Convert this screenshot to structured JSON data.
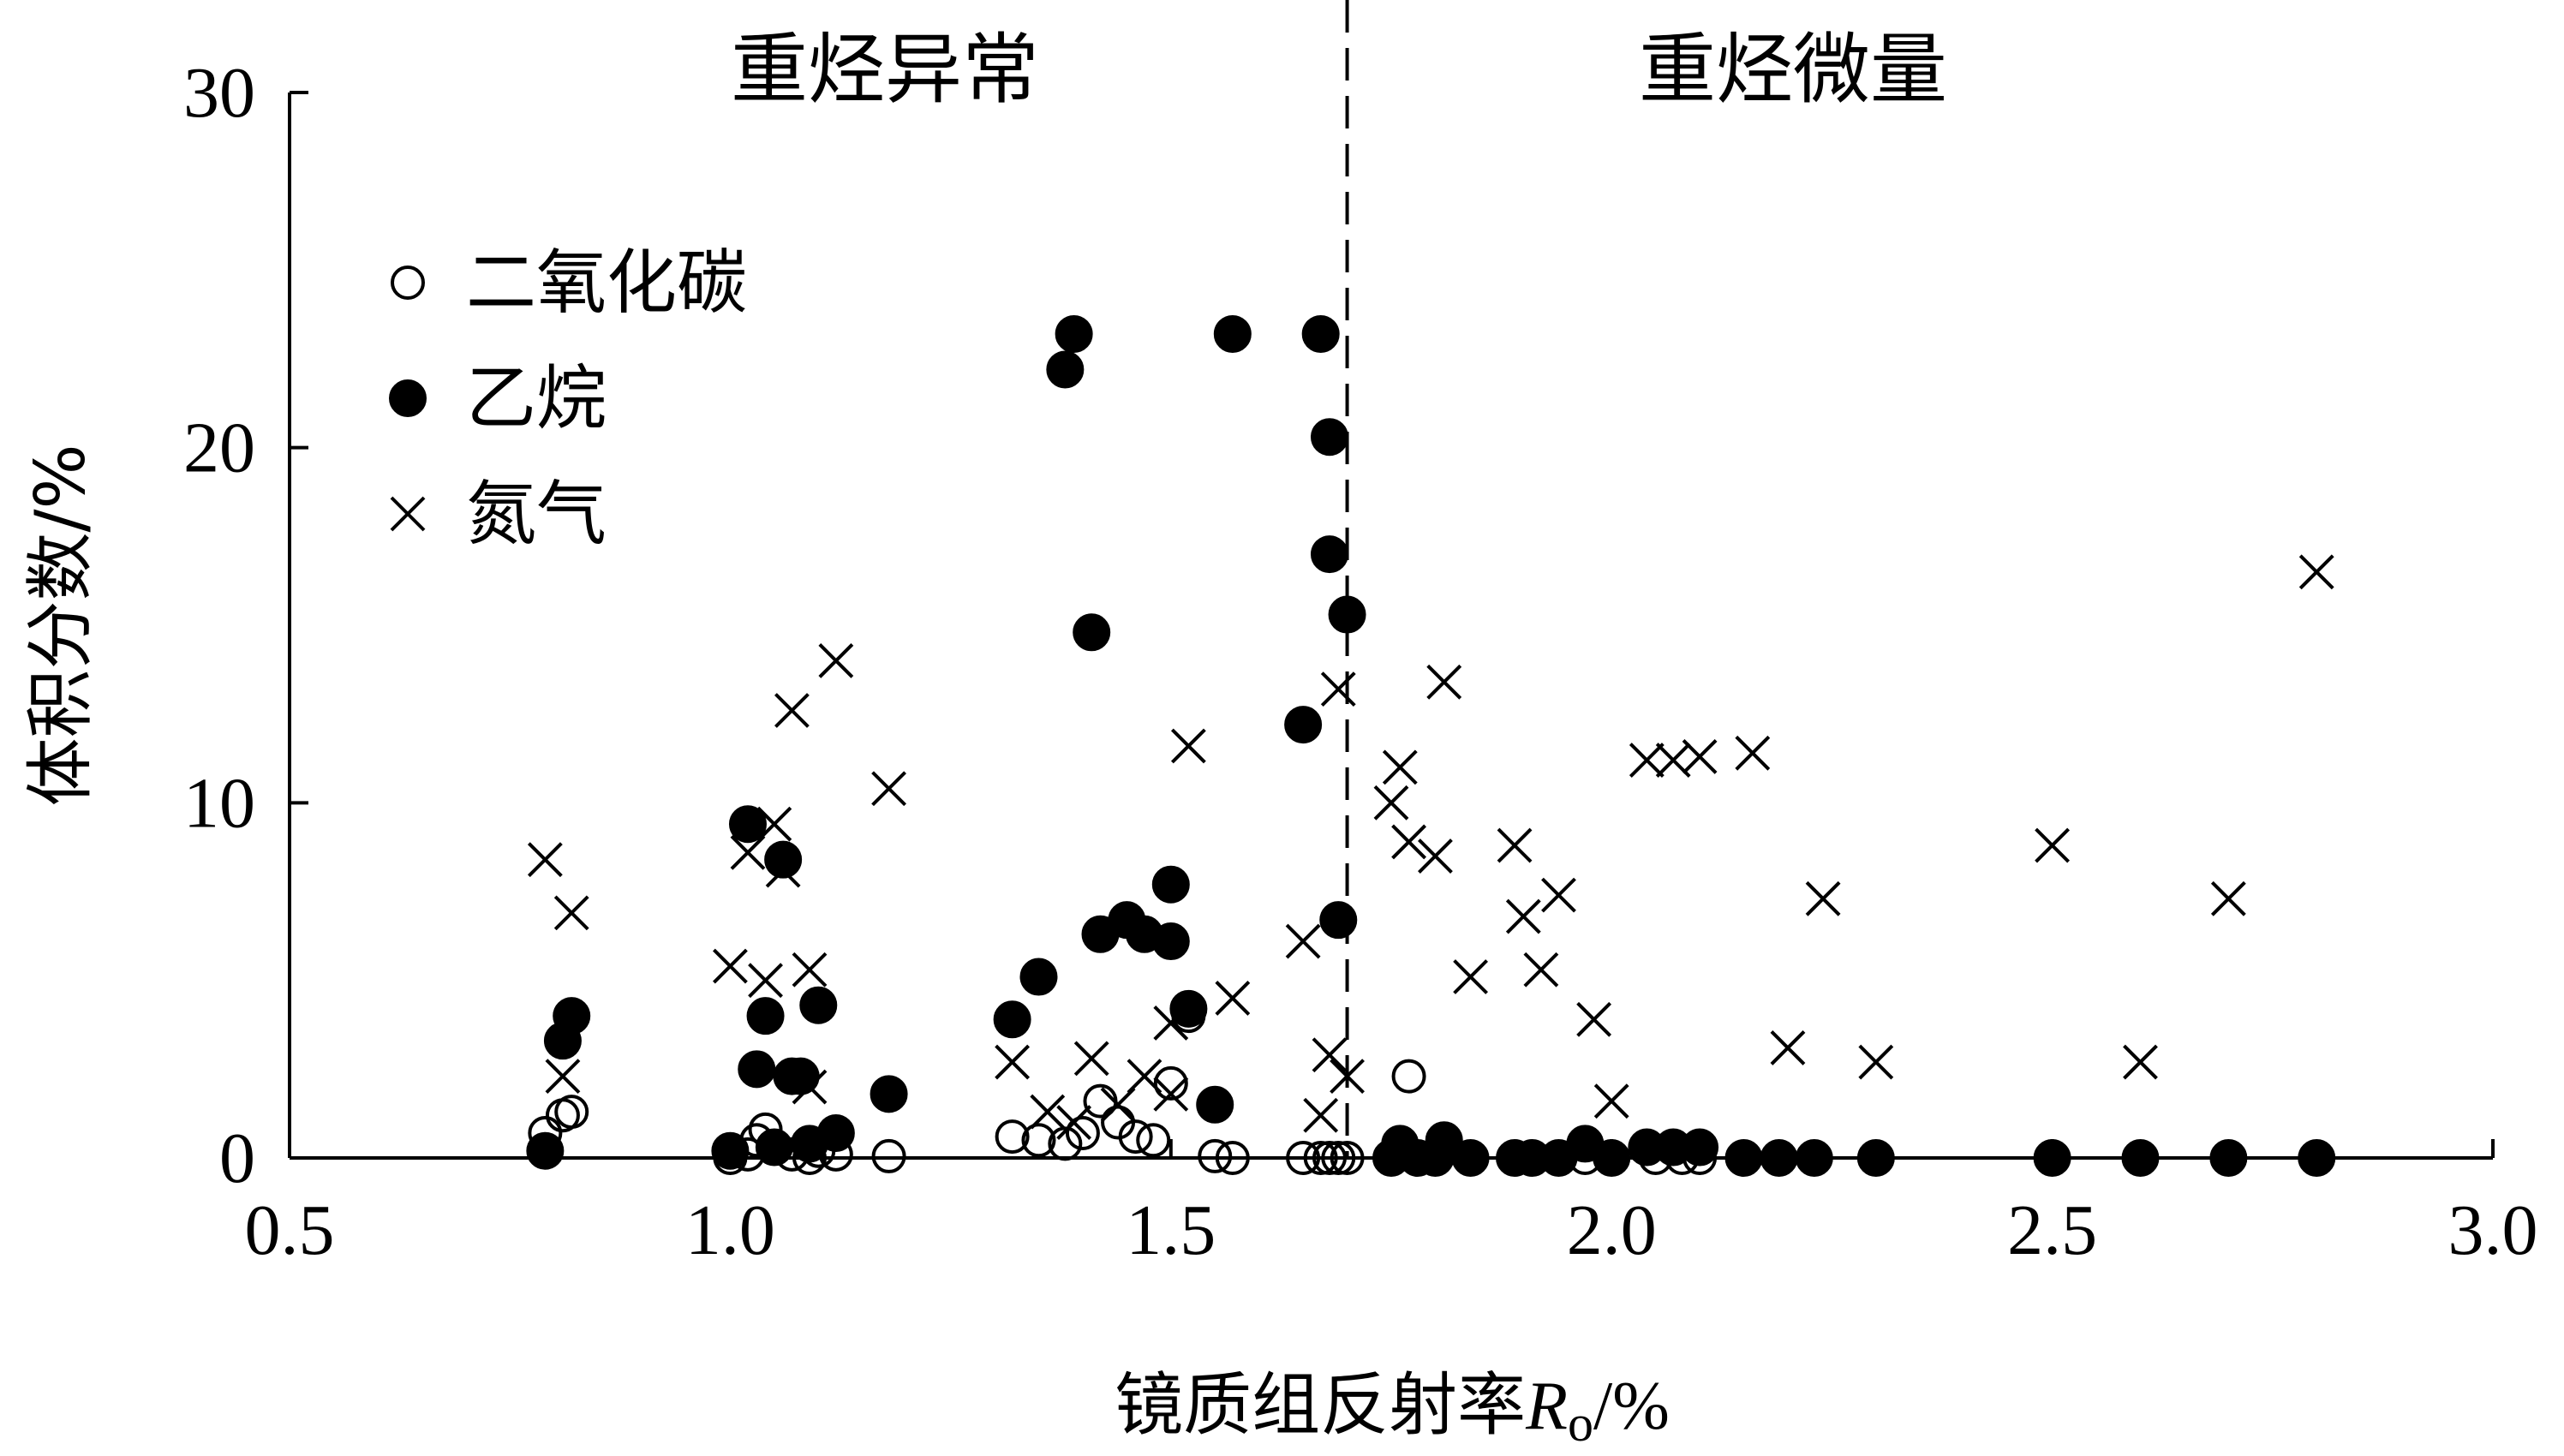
{
  "chart_data": {
    "type": "scatter",
    "xlabel_prefix": "镜质组反射率",
    "xlabel_var": "R",
    "xlabel_sub": "o",
    "xlabel_suffix": "/%",
    "ylabel": "体积分数/%",
    "xlim": [
      0.5,
      3.0
    ],
    "ylim": [
      0,
      30
    ],
    "xticks": [
      "0.5",
      "1.0",
      "1.5",
      "2.0",
      "2.5",
      "3.0"
    ],
    "yticks": [
      "0",
      "10",
      "20",
      "30"
    ],
    "divider_x": 1.7,
    "regions": [
      "重烃异常",
      "重烃微量"
    ],
    "legend_position": "upper-left",
    "series": [
      {
        "name": "二氧化碳",
        "marker": "open-circle",
        "points": [
          [
            0.79,
            0.7
          ],
          [
            0.81,
            1.2
          ],
          [
            0.82,
            1.3
          ],
          [
            1.0,
            0.0
          ],
          [
            1.02,
            0.1
          ],
          [
            1.03,
            0.5
          ],
          [
            1.04,
            0.8
          ],
          [
            1.05,
            0.3
          ],
          [
            1.07,
            0.1
          ],
          [
            1.09,
            0.0
          ],
          [
            1.1,
            0.2
          ],
          [
            1.12,
            0.1
          ],
          [
            1.18,
            0.05
          ],
          [
            1.32,
            0.6
          ],
          [
            1.35,
            0.5
          ],
          [
            1.38,
            0.4
          ],
          [
            1.4,
            0.7
          ],
          [
            1.42,
            1.6
          ],
          [
            1.44,
            1.0
          ],
          [
            1.46,
            0.6
          ],
          [
            1.48,
            0.5
          ],
          [
            1.5,
            2.1
          ],
          [
            1.52,
            4.0
          ],
          [
            1.55,
            0.05
          ],
          [
            1.57,
            0.0
          ],
          [
            1.65,
            0.0
          ],
          [
            1.67,
            0.0
          ],
          [
            1.68,
            0.0
          ],
          [
            1.69,
            0.0
          ],
          [
            1.7,
            0.0
          ],
          [
            1.75,
            0.0
          ],
          [
            1.77,
            2.3
          ],
          [
            1.97,
            0.0
          ],
          [
            2.05,
            0.0
          ],
          [
            2.08,
            0.0
          ],
          [
            2.1,
            0.0
          ]
        ]
      },
      {
        "name": "乙烷",
        "marker": "filled-circle",
        "points": [
          [
            0.79,
            0.2
          ],
          [
            0.81,
            3.3
          ],
          [
            0.82,
            4.0
          ],
          [
            1.0,
            0.2
          ],
          [
            1.02,
            9.4
          ],
          [
            1.03,
            2.5
          ],
          [
            1.04,
            4.0
          ],
          [
            1.05,
            0.3
          ],
          [
            1.06,
            8.4
          ],
          [
            1.07,
            2.3
          ],
          [
            1.08,
            2.3
          ],
          [
            1.09,
            0.4
          ],
          [
            1.1,
            4.3
          ],
          [
            1.12,
            0.7
          ],
          [
            1.18,
            1.8
          ],
          [
            1.32,
            3.9
          ],
          [
            1.35,
            5.1
          ],
          [
            1.38,
            22.2
          ],
          [
            1.39,
            23.2
          ],
          [
            1.41,
            14.8
          ],
          [
            1.42,
            6.3
          ],
          [
            1.45,
            6.7
          ],
          [
            1.47,
            6.3
          ],
          [
            1.5,
            6.1
          ],
          [
            1.5,
            7.7
          ],
          [
            1.52,
            4.2
          ],
          [
            1.55,
            1.5
          ],
          [
            1.57,
            23.2
          ],
          [
            1.65,
            12.2
          ],
          [
            1.67,
            23.2
          ],
          [
            1.68,
            20.3
          ],
          [
            1.68,
            17.0
          ],
          [
            1.69,
            6.7
          ],
          [
            1.7,
            15.3
          ],
          [
            1.75,
            0.0
          ],
          [
            1.76,
            0.4
          ],
          [
            1.78,
            0.0
          ],
          [
            1.8,
            0.0
          ],
          [
            1.81,
            0.5
          ],
          [
            1.84,
            0.0
          ],
          [
            1.89,
            0.0
          ],
          [
            1.91,
            0.0
          ],
          [
            1.94,
            0.0
          ],
          [
            1.97,
            0.4
          ],
          [
            2.0,
            0.0
          ],
          [
            2.04,
            0.3
          ],
          [
            2.07,
            0.3
          ],
          [
            2.1,
            0.3
          ],
          [
            2.15,
            0.0
          ],
          [
            2.19,
            0.0
          ],
          [
            2.23,
            0.0
          ],
          [
            2.3,
            0.0
          ],
          [
            2.5,
            0.0
          ],
          [
            2.6,
            0.0
          ],
          [
            2.7,
            0.0
          ],
          [
            2.8,
            0.0
          ]
        ]
      },
      {
        "name": "氮气",
        "marker": "x",
        "points": [
          [
            0.79,
            8.4
          ],
          [
            0.81,
            2.3
          ],
          [
            0.82,
            6.9
          ],
          [
            1.0,
            5.4
          ],
          [
            1.02,
            8.6
          ],
          [
            1.04,
            5.0
          ],
          [
            1.05,
            9.4
          ],
          [
            1.06,
            8.1
          ],
          [
            1.07,
            12.6
          ],
          [
            1.09,
            5.3
          ],
          [
            1.09,
            2.0
          ],
          [
            1.12,
            14.0
          ],
          [
            1.18,
            10.4
          ],
          [
            1.32,
            2.7
          ],
          [
            1.36,
            1.3
          ],
          [
            1.39,
            1.0
          ],
          [
            1.41,
            2.8
          ],
          [
            1.44,
            1.5
          ],
          [
            1.47,
            2.3
          ],
          [
            1.5,
            3.8
          ],
          [
            1.5,
            1.8
          ],
          [
            1.52,
            11.6
          ],
          [
            1.57,
            4.5
          ],
          [
            1.65,
            6.1
          ],
          [
            1.67,
            1.2
          ],
          [
            1.68,
            2.9
          ],
          [
            1.69,
            13.2
          ],
          [
            1.7,
            2.3
          ],
          [
            1.75,
            10.0
          ],
          [
            1.76,
            11.0
          ],
          [
            1.77,
            8.9
          ],
          [
            1.8,
            8.5
          ],
          [
            1.81,
            13.4
          ],
          [
            1.84,
            5.1
          ],
          [
            1.89,
            8.8
          ],
          [
            1.9,
            6.8
          ],
          [
            1.92,
            5.3
          ],
          [
            1.94,
            7.4
          ],
          [
            1.98,
            3.9
          ],
          [
            2.0,
            1.6
          ],
          [
            2.04,
            11.2
          ],
          [
            2.07,
            11.2
          ],
          [
            2.1,
            11.3
          ],
          [
            2.16,
            11.4
          ],
          [
            2.2,
            3.1
          ],
          [
            2.24,
            7.3
          ],
          [
            2.3,
            2.7
          ],
          [
            2.5,
            8.8
          ],
          [
            2.6,
            2.7
          ],
          [
            2.7,
            7.3
          ],
          [
            2.8,
            16.5
          ]
        ]
      }
    ]
  }
}
